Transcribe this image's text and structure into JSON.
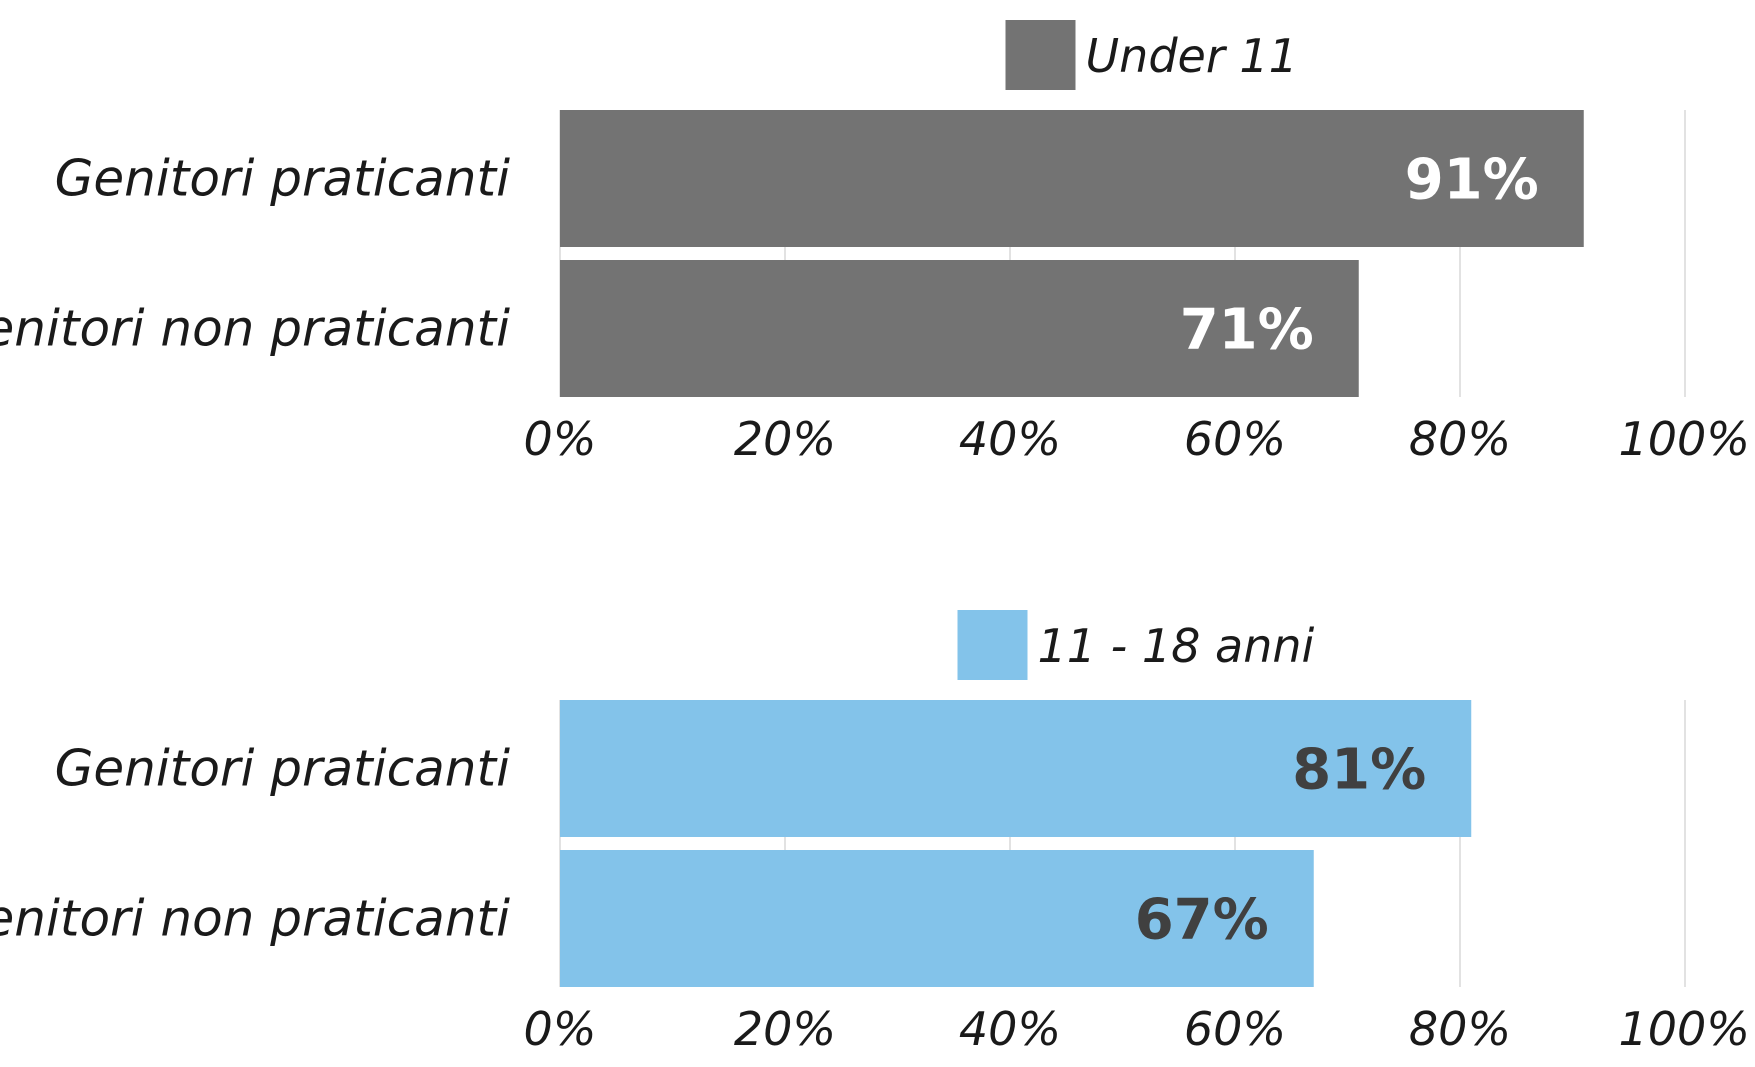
{
  "chart_data": [
    {
      "type": "bar",
      "orientation": "horizontal",
      "legend": "Under 11",
      "color": "#737373",
      "value_label_color": "#ffffff",
      "categories": [
        "Genitori praticanti",
        "Genitori non praticanti"
      ],
      "values": [
        91,
        71
      ],
      "value_labels": [
        "91%",
        "71%"
      ],
      "xlim": [
        0,
        100
      ],
      "x_ticks": [
        "0%",
        "20%",
        "40%",
        "60%",
        "80%",
        "100%"
      ],
      "grid": true,
      "legend_position": "top"
    },
    {
      "type": "bar",
      "orientation": "horizontal",
      "legend": "11 - 18 anni",
      "color": "#83c3ea",
      "value_label_color": "#404040",
      "categories": [
        "Genitori praticanti",
        "Genitori non praticanti"
      ],
      "values": [
        81,
        67
      ],
      "value_labels": [
        "81%",
        "67%"
      ],
      "xlim": [
        0,
        100
      ],
      "x_ticks": [
        "0%",
        "20%",
        "40%",
        "60%",
        "80%",
        "100%"
      ],
      "grid": true,
      "legend_position": "top"
    }
  ]
}
